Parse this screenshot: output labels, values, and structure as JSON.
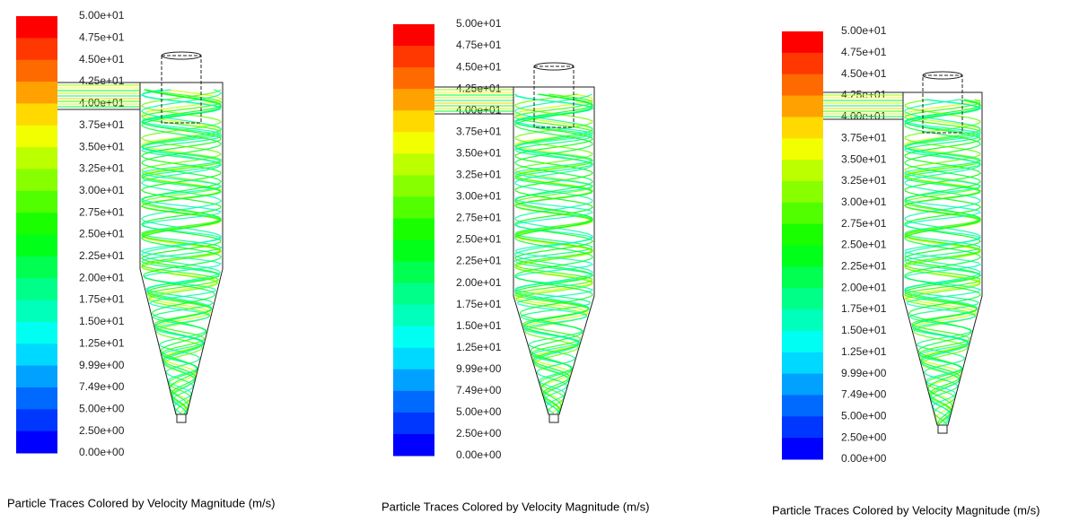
{
  "panels": [
    {
      "legend_labels": [
        "5.00e+01",
        "4.75e+01",
        "4.50e+01",
        "4.25e+01",
        "4.00e+01",
        "3.75e+01",
        "3.50e+01",
        "3.25e+01",
        "3.00e+01",
        "2.75e+01",
        "2.50e+01",
        "2.25e+01",
        "2.00e+01",
        "1.75e+01",
        "1.50e+01",
        "1.25e+01",
        "9.99e+00",
        "7.49e+00",
        "5.00e+00",
        "2.50e+00",
        "0.00e+00"
      ],
      "caption": "Particle Traces Colored by Velocity Magnitude (m/s)"
    },
    {
      "legend_labels": [
        "5.00e+01",
        "4.75e+01",
        "4.50e+01",
        "4.25e+01",
        "4.00e+01",
        "3.75e+01",
        "3.50e+01",
        "3.25e+01",
        "3.00e+01",
        "2.75e+01",
        "2.50e+01",
        "2.25e+01",
        "2.00e+01",
        "1.75e+01",
        "1.50e+01",
        "1.25e+01",
        "9.99e+00",
        "7.49e+00",
        "5.00e+00",
        "2.50e+00",
        "0.00e+00"
      ],
      "caption": "Particle Traces Colored by Velocity Magnitude (m/s)"
    },
    {
      "legend_labels": [
        "5.00e+01",
        "4.75e+01",
        "4.50e+01",
        "4.25e+01",
        "4.00e+01",
        "3.75e+01",
        "3.50e+01",
        "3.25e+01",
        "3.00e+01",
        "2.75e+01",
        "2.50e+01",
        "2.25e+01",
        "2.00e+01",
        "1.75e+01",
        "1.50e+01",
        "1.25e+01",
        "9.99e+00",
        "7.49e+00",
        "5.00e+00",
        "2.50e+00",
        "0.00e+00"
      ],
      "caption": "Particle Traces Colored by Velocity Magnitude (m/s)"
    }
  ]
}
